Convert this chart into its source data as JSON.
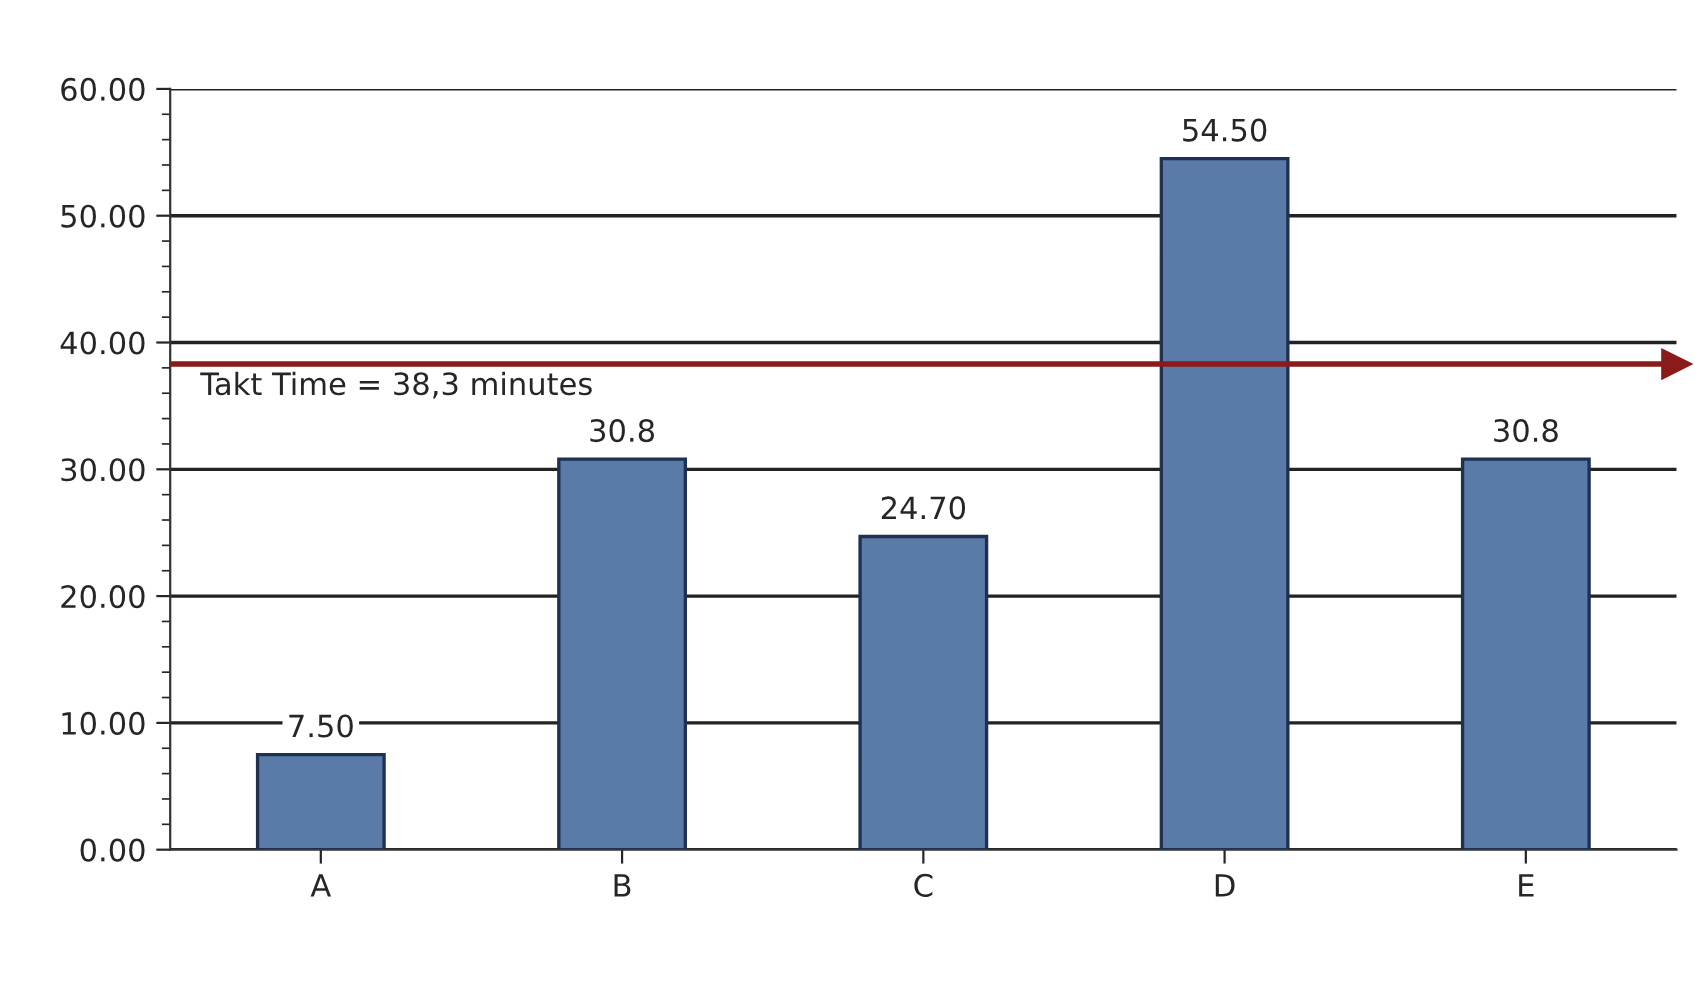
{
  "chart_data": {
    "type": "bar",
    "categories": [
      "A",
      "B",
      "C",
      "D",
      "E"
    ],
    "values": [
      7.5,
      30.8,
      24.7,
      54.5,
      30.8
    ],
    "value_labels": [
      "7.50",
      "30.8",
      "24.70",
      "54.50",
      "30.8"
    ],
    "color": "#5a7aa8",
    "ylim": [
      0,
      60
    ],
    "yticks": [
      {
        "value": 0,
        "label": "0.00"
      },
      {
        "value": 10,
        "label": "10.00"
      },
      {
        "value": 20,
        "label": "20.00"
      },
      {
        "value": 30,
        "label": "30.00"
      },
      {
        "value": 40,
        "label": "40.00"
      },
      {
        "value": 50,
        "label": "50.00"
      },
      {
        "value": 60,
        "label": "60.00"
      }
    ],
    "grid": "y",
    "ref_lines": [
      {
        "axis": "y",
        "value": 38.3,
        "label": "Takt Time = 38,3 minutes",
        "color": "#8b1a1a",
        "line_style": "solid"
      }
    ]
  }
}
